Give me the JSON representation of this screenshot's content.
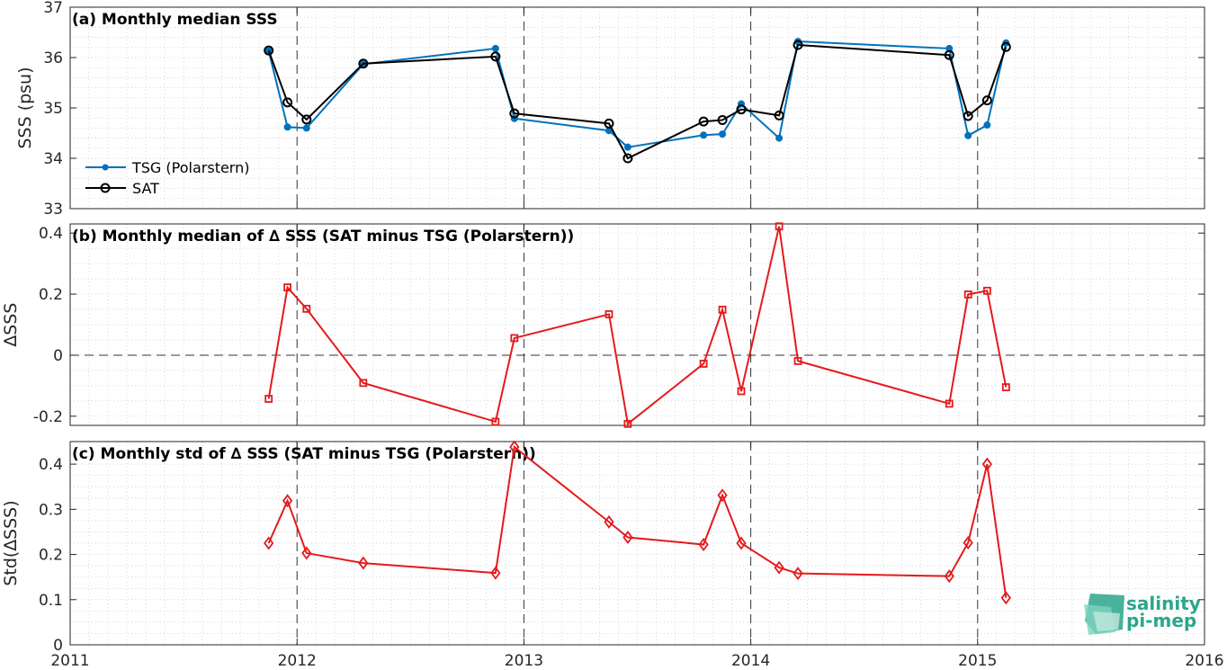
{
  "logo": {
    "line1": "salinity",
    "line2": "pi-mep",
    "color": "#2aa68c"
  },
  "colors": {
    "tsg": "#0072bd",
    "sat": "#000000",
    "delta": "#e41a1c"
  },
  "xaxis": {
    "range": [
      2011,
      2016
    ],
    "tick_labels": [
      "2011",
      "2012",
      "2013",
      "2014",
      "2015",
      "2016"
    ],
    "vlines": [
      2012,
      2013,
      2014,
      2015
    ]
  },
  "chart_data": [
    {
      "type": "line",
      "title": "(a) Monthly median SSS",
      "ylabel": "SSS (psu)",
      "ylim": [
        33,
        37
      ],
      "yticks": [
        33,
        34,
        35,
        36,
        37
      ],
      "ytick_labels": [
        "33",
        "34",
        "35",
        "36",
        "37"
      ],
      "grid": true,
      "legend_position": "bottom-left",
      "series": [
        {
          "name": "TSG (Polarstern)",
          "marker": "dot",
          "x": [
            2011.875,
            2011.958,
            2012.042,
            2012.292,
            2012.875,
            2012.958,
            2013.375,
            2013.458,
            2013.792,
            2013.875,
            2013.958,
            2014.125,
            2014.208,
            2014.875,
            2014.958,
            2015.042,
            2015.125
          ],
          "y": [
            36.13,
            34.62,
            34.6,
            35.87,
            36.18,
            34.79,
            34.55,
            34.22,
            34.46,
            34.48,
            35.08,
            34.4,
            36.32,
            36.18,
            34.45,
            34.66,
            36.29
          ]
        },
        {
          "name": "SAT",
          "marker": "circle",
          "x": [
            2011.875,
            2011.958,
            2012.042,
            2012.292,
            2012.875,
            2012.958,
            2013.375,
            2013.458,
            2013.792,
            2013.875,
            2013.958,
            2014.125,
            2014.208,
            2014.875,
            2014.958,
            2015.042,
            2015.125
          ],
          "y": [
            36.14,
            35.11,
            34.77,
            35.88,
            36.02,
            34.89,
            34.69,
            34.0,
            34.73,
            34.76,
            34.97,
            34.85,
            36.25,
            36.05,
            34.84,
            35.15,
            36.21
          ]
        }
      ]
    },
    {
      "type": "line",
      "title": "(b) Monthly median of ∆ SSS (SAT minus TSG (Polarstern))",
      "ylabel": "∆SSS",
      "ylim": [
        -0.23,
        0.43
      ],
      "yticks": [
        -0.2,
        0,
        0.2,
        0.4
      ],
      "ytick_labels": [
        "-0.2",
        "0",
        "0.2",
        "0.4"
      ],
      "zero_line": true,
      "grid": true,
      "series": [
        {
          "marker": "square",
          "x": [
            2011.875,
            2011.958,
            2012.042,
            2012.292,
            2012.875,
            2012.958,
            2013.375,
            2013.458,
            2013.792,
            2013.875,
            2013.958,
            2014.125,
            2014.208,
            2014.875,
            2014.958,
            2015.042,
            2015.125
          ],
          "y": [
            -0.143,
            0.222,
            0.152,
            -0.091,
            -0.218,
            0.056,
            0.134,
            -0.225,
            -0.028,
            0.149,
            -0.118,
            0.422,
            -0.019,
            -0.159,
            0.199,
            0.211,
            -0.105
          ]
        }
      ]
    },
    {
      "type": "line",
      "title": "(c) Monthly std of ∆ SSS (SAT minus TSG (Polarstern))",
      "ylabel": "Std(∆SSS)",
      "ylim": [
        0,
        0.45
      ],
      "yticks": [
        0,
        0.1,
        0.2,
        0.3,
        0.4
      ],
      "ytick_labels": [
        "0",
        "0.1",
        "0.2",
        "0.3",
        "0.4"
      ],
      "grid": true,
      "series": [
        {
          "marker": "diamond",
          "x": [
            2011.875,
            2011.958,
            2012.042,
            2012.292,
            2012.875,
            2012.958,
            2013.375,
            2013.458,
            2013.792,
            2013.875,
            2013.958,
            2014.125,
            2014.208,
            2014.875,
            2014.958,
            2015.042,
            2015.125
          ],
          "y": [
            0.225,
            0.319,
            0.203,
            0.181,
            0.159,
            0.438,
            0.272,
            0.238,
            0.222,
            0.331,
            0.225,
            0.171,
            0.158,
            0.152,
            0.226,
            0.4,
            0.104
          ]
        }
      ]
    }
  ]
}
